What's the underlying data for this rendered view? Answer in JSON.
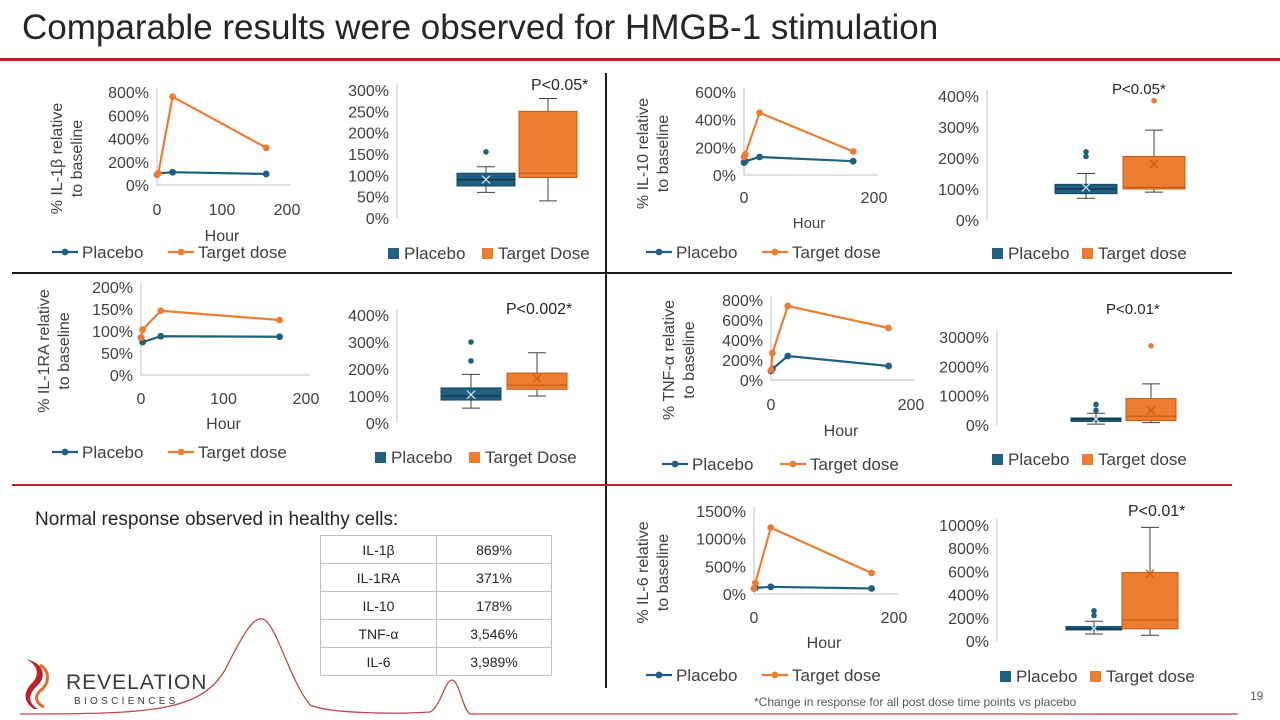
{
  "title": "Comparable results were observed for  HMGB-1 stimulation",
  "colors": {
    "placebo": "#1f5f7f",
    "target": "#ed7d31",
    "brand_red": "#b8242b"
  },
  "panels": [
    {
      "id": "il1b",
      "line": {
        "ylabel": "% IL-1β relative to baseline",
        "xlabel": "Hour",
        "y_ticks": [
          "800%",
          "600%",
          "400%",
          "200%",
          "0%"
        ],
        "x_ticks": [
          "0",
          "100",
          "200"
        ],
        "legend": [
          "Placebo",
          "Target dose"
        ]
      },
      "box": {
        "y_ticks": [
          "300%",
          "250%",
          "200%",
          "150%",
          "100%",
          "50%",
          "0%"
        ],
        "pvalue": "P<0.05*",
        "legend": [
          "Placebo",
          "Target Dose"
        ]
      }
    },
    {
      "id": "il10",
      "line": {
        "ylabel": "% IL-10 relative to baseline",
        "xlabel": "Hour",
        "y_ticks": [
          "600%",
          "400%",
          "200%",
          "0%"
        ],
        "x_ticks": [
          "0",
          "200"
        ],
        "legend": [
          "Placebo",
          "Target dose"
        ]
      },
      "box": {
        "y_ticks": [
          "400%",
          "300%",
          "200%",
          "100%",
          "0%"
        ],
        "pvalue": "P<0.05*",
        "legend": [
          "Placebo",
          "Target dose"
        ]
      }
    },
    {
      "id": "il1ra",
      "line": {
        "ylabel": "% IL-1RA relative to baseline",
        "xlabel": "Hour",
        "y_ticks": [
          "200%",
          "150%",
          "100%",
          "50%",
          "0%"
        ],
        "x_ticks": [
          "0",
          "100",
          "200"
        ],
        "legend": [
          "Placebo",
          "Target dose"
        ]
      },
      "box": {
        "y_ticks": [
          "400%",
          "300%",
          "200%",
          "100%",
          "0%"
        ],
        "pvalue": "P<0.002*",
        "legend": [
          "Placebo",
          "Target Dose"
        ]
      }
    },
    {
      "id": "tnfa",
      "line": {
        "ylabel": "% TNF-α relative to baseline",
        "xlabel": "Hour",
        "y_ticks": [
          "800%",
          "600%",
          "400%",
          "200%",
          "0%"
        ],
        "x_ticks": [
          "0",
          "200"
        ],
        "legend": [
          "Placebo",
          "Target dose"
        ]
      },
      "box": {
        "y_ticks": [
          "3000%",
          "2000%",
          "1000%",
          "0%"
        ],
        "pvalue": "P<0.01*",
        "legend": [
          "Placebo",
          "Target dose"
        ]
      }
    },
    {
      "id": "il6",
      "line": {
        "ylabel": "% IL-6 relative to baseline",
        "xlabel": "Hour",
        "y_ticks": [
          "1500%",
          "1000%",
          "500%",
          "0%"
        ],
        "x_ticks": [
          "0",
          "200"
        ],
        "legend": [
          "Placebo",
          "Target dose"
        ]
      },
      "box": {
        "y_ticks": [
          "1000%",
          "800%",
          "600%",
          "400%",
          "200%",
          "0%"
        ],
        "pvalue": "P<0.01*",
        "legend": [
          "Placebo",
          "Target dose"
        ]
      }
    }
  ],
  "chart_data": [
    {
      "type": "line",
      "panel": "il1b",
      "xlabel": "Hour",
      "ylabel": "% IL-1β relative to baseline",
      "xlim": [
        0,
        200
      ],
      "ylim": [
        0,
        800
      ],
      "series": [
        {
          "name": "Placebo",
          "x": [
            0,
            2,
            24,
            168
          ],
          "y": [
            90,
            100,
            110,
            95
          ]
        },
        {
          "name": "Target dose",
          "x": [
            0,
            2,
            24,
            168
          ],
          "y": [
            90,
            100,
            760,
            320
          ]
        }
      ]
    },
    {
      "type": "box",
      "panel": "il1b",
      "ylim": [
        0,
        300
      ],
      "series": [
        {
          "name": "Placebo",
          "whisker_low": 60,
          "q1": 75,
          "median": 90,
          "q3": 105,
          "whisker_high": 120,
          "mean": 90,
          "outliers": [
            155
          ]
        },
        {
          "name": "Target Dose",
          "whisker_low": 40,
          "q1": 95,
          "median": 105,
          "q3": 250,
          "whisker_high": 280,
          "mean": null,
          "outliers": []
        }
      ]
    },
    {
      "type": "line",
      "panel": "il10",
      "xlabel": "Hour",
      "ylabel": "% IL-10 relative to baseline",
      "xlim": [
        0,
        200
      ],
      "ylim": [
        0,
        600
      ],
      "series": [
        {
          "name": "Placebo",
          "x": [
            0,
            2,
            24,
            168
          ],
          "y": [
            90,
            100,
            130,
            100
          ]
        },
        {
          "name": "Target dose",
          "x": [
            0,
            2,
            24,
            168
          ],
          "y": [
            130,
            150,
            450,
            170
          ]
        }
      ]
    },
    {
      "type": "box",
      "panel": "il10",
      "ylim": [
        0,
        400
      ],
      "series": [
        {
          "name": "Placebo",
          "whisker_low": 70,
          "q1": 85,
          "median": 100,
          "q3": 115,
          "whisker_high": 150,
          "mean": 105,
          "outliers": [
            205,
            220
          ]
        },
        {
          "name": "Target dose",
          "whisker_low": 90,
          "q1": 100,
          "median": 105,
          "q3": 205,
          "whisker_high": 290,
          "mean": 180,
          "outliers": [
            385
          ]
        }
      ]
    },
    {
      "type": "line",
      "panel": "il1ra",
      "xlabel": "Hour",
      "ylabel": "% IL-1RA relative to baseline",
      "xlim": [
        0,
        200
      ],
      "ylim": [
        0,
        200
      ],
      "series": [
        {
          "name": "Placebo",
          "x": [
            0,
            2,
            24,
            168
          ],
          "y": [
            85,
            75,
            88,
            87
          ]
        },
        {
          "name": "Target dose",
          "x": [
            0,
            2,
            24,
            168
          ],
          "y": [
            85,
            103,
            146,
            125
          ]
        }
      ]
    },
    {
      "type": "box",
      "panel": "il1ra",
      "ylim": [
        0,
        400
      ],
      "series": [
        {
          "name": "Placebo",
          "whisker_low": 55,
          "q1": 85,
          "median": 100,
          "q3": 130,
          "whisker_high": 180,
          "mean": 105,
          "outliers": [
            230,
            300
          ]
        },
        {
          "name": "Target Dose",
          "whisker_low": 100,
          "q1": 125,
          "median": 140,
          "q3": 185,
          "whisker_high": 260,
          "mean": 165,
          "outliers": []
        }
      ]
    },
    {
      "type": "line",
      "panel": "tnfa",
      "xlabel": "Hour",
      "ylabel": "% TNF-α relative to baseline",
      "xlim": [
        0,
        200
      ],
      "ylim": [
        0,
        800
      ],
      "series": [
        {
          "name": "Placebo",
          "x": [
            0,
            2,
            24,
            168
          ],
          "y": [
            90,
            110,
            240,
            140
          ]
        },
        {
          "name": "Target dose",
          "x": [
            0,
            2,
            24,
            168
          ],
          "y": [
            100,
            270,
            740,
            520
          ]
        }
      ]
    },
    {
      "type": "box",
      "panel": "tnfa",
      "ylim": [
        0,
        3000
      ],
      "series": [
        {
          "name": "Placebo",
          "whisker_low": 30,
          "q1": 120,
          "median": 200,
          "q3": 240,
          "whisker_high": 400,
          "mean": 200,
          "outliers": [
            500,
            700
          ]
        },
        {
          "name": "Target dose",
          "whisker_low": 80,
          "q1": 150,
          "median": 300,
          "q3": 900,
          "whisker_high": 1400,
          "mean": 500,
          "outliers": [
            2700
          ]
        }
      ]
    },
    {
      "type": "line",
      "panel": "il6",
      "xlabel": "Hour",
      "ylabel": "% IL-6 relative to baseline",
      "xlim": [
        0,
        200
      ],
      "ylim": [
        0,
        1500
      ],
      "series": [
        {
          "name": "Placebo",
          "x": [
            0,
            2,
            24,
            168
          ],
          "y": [
            100,
            110,
            130,
            100
          ]
        },
        {
          "name": "Target dose",
          "x": [
            0,
            2,
            24,
            168
          ],
          "y": [
            100,
            200,
            1200,
            380
          ]
        }
      ]
    },
    {
      "type": "box",
      "panel": "il6",
      "ylim": [
        0,
        1000
      ],
      "series": [
        {
          "name": "Placebo",
          "whisker_low": 60,
          "q1": 95,
          "median": 105,
          "q3": 125,
          "whisker_high": 170,
          "mean": 110,
          "outliers": [
            220,
            260
          ]
        },
        {
          "name": "Target dose",
          "whisker_low": 50,
          "q1": 105,
          "median": 180,
          "q3": 590,
          "whisker_high": 980,
          "mean": 580,
          "outliers": []
        }
      ]
    }
  ],
  "healthy": {
    "heading": "Normal response observed in healthy cells:",
    "rows": [
      {
        "marker": "IL-1β",
        "value": "869%"
      },
      {
        "marker": "IL-1RA",
        "value": "371%"
      },
      {
        "marker": "IL-10",
        "value": "178%"
      },
      {
        "marker": "TNF-α",
        "value": "3,546%"
      },
      {
        "marker": "IL-6",
        "value": "3,989%"
      }
    ]
  },
  "logo": {
    "word1": "REVELATION",
    "word2": "BIOSCIENCES"
  },
  "footnote": "*Change in response for all post dose time points vs placebo",
  "page_number": "19"
}
